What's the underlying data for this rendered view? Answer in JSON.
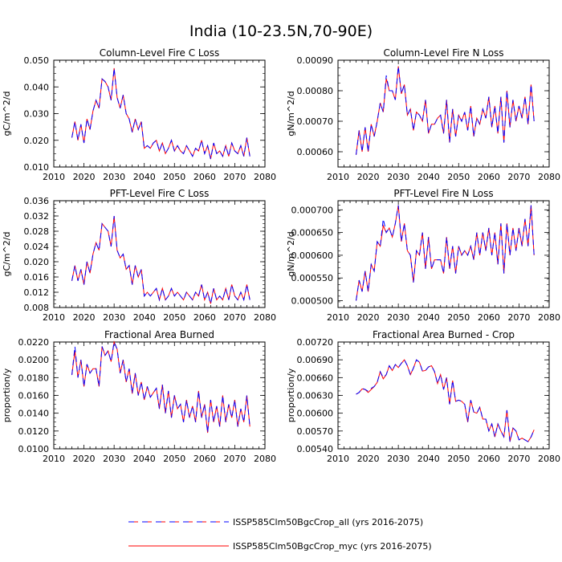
{
  "title": "India (10-23.5N,70-90E)",
  "legend": [
    {
      "label": "ISSP585Clm50BgcCrop_all (yrs 2016-2075)",
      "color": "#0000ff",
      "dash": "dashed"
    },
    {
      "label": "ISSP585Clm50BgcCrop_myc (yrs 2016-2075)",
      "color": "#ff0000",
      "dash": "solid"
    }
  ],
  "chart_data": [
    {
      "type": "line",
      "title": "Column-Level Fire C Loss",
      "ylabel": "gC/m^2/d",
      "xlim": [
        2010,
        2080
      ],
      "xticks": [
        "2010",
        "2020",
        "2030",
        "2040",
        "2050",
        "2060",
        "2070",
        "2080"
      ],
      "ylim": [
        0.01,
        0.05
      ],
      "yticks": [
        "0.010",
        "0.020",
        "0.030",
        "0.040",
        "0.050"
      ],
      "x_start": 2016,
      "series": [
        {
          "name": "ISSP585Clm50BgcCrop_all (yrs 2016-2075)",
          "values": [
            0.021,
            0.027,
            0.02,
            0.026,
            0.019,
            0.028,
            0.024,
            0.031,
            0.035,
            0.032,
            0.043,
            0.042,
            0.04,
            0.035,
            0.047,
            0.036,
            0.032,
            0.037,
            0.03,
            0.028,
            0.023,
            0.028,
            0.024,
            0.027,
            0.017,
            0.018,
            0.017,
            0.019,
            0.02,
            0.016,
            0.019,
            0.015,
            0.017,
            0.02,
            0.016,
            0.018,
            0.016,
            0.015,
            0.018,
            0.016,
            0.014,
            0.017,
            0.016,
            0.02,
            0.015,
            0.018,
            0.013,
            0.019,
            0.015,
            0.016,
            0.014,
            0.018,
            0.014,
            0.019,
            0.016,
            0.015,
            0.018,
            0.014,
            0.021,
            0.014
          ]
        },
        {
          "name": "ISSP585Clm50BgcCrop_myc (yrs 2016-2075)",
          "values": [
            0.021,
            0.027,
            0.02,
            0.026,
            0.019,
            0.028,
            0.024,
            0.031,
            0.035,
            0.032,
            0.043,
            0.042,
            0.04,
            0.035,
            0.047,
            0.036,
            0.032,
            0.037,
            0.03,
            0.028,
            0.023,
            0.028,
            0.024,
            0.027,
            0.017,
            0.018,
            0.017,
            0.019,
            0.02,
            0.016,
            0.019,
            0.015,
            0.017,
            0.02,
            0.016,
            0.018,
            0.016,
            0.015,
            0.018,
            0.016,
            0.014,
            0.017,
            0.016,
            0.02,
            0.015,
            0.018,
            0.013,
            0.019,
            0.015,
            0.016,
            0.014,
            0.018,
            0.014,
            0.019,
            0.016,
            0.015,
            0.018,
            0.014,
            0.021,
            0.014
          ]
        }
      ]
    },
    {
      "type": "line",
      "title": "Column-Level Fire N Loss",
      "ylabel": "gN/m^2/d",
      "xlim": [
        2010,
        2080
      ],
      "xticks": [
        "2010",
        "2020",
        "2030",
        "2040",
        "2050",
        "2060",
        "2070",
        "2080"
      ],
      "ylim": [
        0.00055,
        0.0009
      ],
      "yticks": [
        "0.00060",
        "0.00070",
        "0.00080",
        "0.00090"
      ],
      "x_start": 2016,
      "series": [
        {
          "name": "ISSP585Clm50BgcCrop_all (yrs 2016-2075)",
          "values": [
            0.00059,
            0.00067,
            0.0006,
            0.00068,
            0.0006,
            0.00069,
            0.00065,
            0.0007,
            0.00076,
            0.00073,
            0.00085,
            0.0008,
            0.0008,
            0.00077,
            0.00088,
            0.00079,
            0.00082,
            0.00072,
            0.00074,
            0.00067,
            0.00073,
            0.00072,
            0.0007,
            0.00077,
            0.00066,
            0.00069,
            0.00069,
            0.00071,
            0.00072,
            0.00066,
            0.00077,
            0.00063,
            0.00074,
            0.00065,
            0.00072,
            0.0007,
            0.00073,
            0.00067,
            0.00075,
            0.00065,
            0.00071,
            0.00069,
            0.00074,
            0.00071,
            0.00078,
            0.00068,
            0.00075,
            0.00066,
            0.00078,
            0.00063,
            0.0008,
            0.00068,
            0.00077,
            0.0007,
            0.00075,
            0.00071,
            0.00078,
            0.00069,
            0.00082,
            0.0007
          ]
        },
        {
          "name": "ISSP585Clm50BgcCrop_myc (yrs 2016-2075)",
          "values": [
            0.00059,
            0.00067,
            0.0006,
            0.00068,
            0.0006,
            0.00069,
            0.00065,
            0.0007,
            0.00076,
            0.00073,
            0.00084,
            0.0008,
            0.0008,
            0.00077,
            0.00088,
            0.00079,
            0.00082,
            0.00072,
            0.00074,
            0.00067,
            0.00073,
            0.00072,
            0.0007,
            0.00077,
            0.00066,
            0.00069,
            0.00069,
            0.00071,
            0.00072,
            0.00066,
            0.00077,
            0.00063,
            0.00074,
            0.00065,
            0.00072,
            0.0007,
            0.00073,
            0.00067,
            0.00075,
            0.00065,
            0.00071,
            0.00069,
            0.00074,
            0.00071,
            0.00078,
            0.00068,
            0.00075,
            0.00066,
            0.00078,
            0.00063,
            0.0008,
            0.00068,
            0.00077,
            0.0007,
            0.00075,
            0.00071,
            0.00078,
            0.00069,
            0.00082,
            0.0007
          ]
        }
      ]
    },
    {
      "type": "line",
      "title": "PFT-Level Fire C Loss",
      "ylabel": "gC/m^2/d",
      "xlim": [
        2010,
        2080
      ],
      "xticks": [
        "2010",
        "2020",
        "2030",
        "2040",
        "2050",
        "2060",
        "2070",
        "2080"
      ],
      "ylim": [
        0.008,
        0.036
      ],
      "yticks": [
        "0.008",
        "0.012",
        "0.016",
        "0.020",
        "0.024",
        "0.028",
        "0.032",
        "0.036"
      ],
      "x_start": 2016,
      "series": [
        {
          "name": "ISSP585Clm50BgcCrop_all (yrs 2016-2075)",
          "values": [
            0.015,
            0.019,
            0.015,
            0.018,
            0.014,
            0.02,
            0.017,
            0.022,
            0.025,
            0.023,
            0.03,
            0.029,
            0.028,
            0.024,
            0.032,
            0.023,
            0.021,
            0.022,
            0.018,
            0.019,
            0.014,
            0.019,
            0.016,
            0.018,
            0.011,
            0.012,
            0.011,
            0.012,
            0.013,
            0.01,
            0.013,
            0.01,
            0.011,
            0.013,
            0.011,
            0.012,
            0.011,
            0.01,
            0.012,
            0.011,
            0.01,
            0.012,
            0.011,
            0.014,
            0.01,
            0.012,
            0.009,
            0.013,
            0.01,
            0.011,
            0.01,
            0.013,
            0.01,
            0.014,
            0.011,
            0.01,
            0.012,
            0.01,
            0.014,
            0.01
          ]
        },
        {
          "name": "ISSP585Clm50BgcCrop_myc (yrs 2016-2075)",
          "values": [
            0.015,
            0.019,
            0.015,
            0.018,
            0.014,
            0.02,
            0.017,
            0.022,
            0.025,
            0.023,
            0.03,
            0.029,
            0.028,
            0.024,
            0.032,
            0.023,
            0.021,
            0.022,
            0.018,
            0.019,
            0.014,
            0.019,
            0.016,
            0.018,
            0.011,
            0.012,
            0.011,
            0.012,
            0.013,
            0.01,
            0.013,
            0.01,
            0.011,
            0.013,
            0.011,
            0.012,
            0.011,
            0.01,
            0.012,
            0.011,
            0.01,
            0.012,
            0.011,
            0.014,
            0.01,
            0.012,
            0.009,
            0.013,
            0.01,
            0.011,
            0.01,
            0.013,
            0.01,
            0.014,
            0.011,
            0.01,
            0.012,
            0.01,
            0.014,
            0.01
          ]
        }
      ]
    },
    {
      "type": "line",
      "title": "PFT-Level Fire N Loss",
      "ylabel": "gN/m^2/d",
      "xlim": [
        2010,
        2080
      ],
      "xticks": [
        "2010",
        "2020",
        "2030",
        "2040",
        "2050",
        "2060",
        "2070",
        "2080"
      ],
      "ylim": [
        0.000485,
        0.00072
      ],
      "yticks": [
        "0.000500",
        "0.000550",
        "0.000600",
        "0.000650",
        "0.000700"
      ],
      "x_start": 2016,
      "series": [
        {
          "name": "ISSP585Clm50BgcCrop_all (yrs 2016-2075)",
          "values": [
            0.0005,
            0.000545,
            0.00052,
            0.000565,
            0.00052,
            0.00058,
            0.000565,
            0.00063,
            0.00062,
            0.00068,
            0.00065,
            0.00066,
            0.00064,
            0.00067,
            0.00071,
            0.00063,
            0.00067,
            0.00061,
            0.0006,
            0.00054,
            0.00061,
            0.0006,
            0.00065,
            0.00057,
            0.00064,
            0.00057,
            0.00059,
            0.00059,
            0.00059,
            0.00056,
            0.00064,
            0.00057,
            0.00062,
            0.00056,
            0.00062,
            0.0006,
            0.00061,
            0.0006,
            0.00062,
            0.00059,
            0.00065,
            0.0006,
            0.00065,
            0.00061,
            0.00066,
            0.0006,
            0.00065,
            0.00058,
            0.00067,
            0.00056,
            0.00067,
            0.0006,
            0.00066,
            0.00061,
            0.00066,
            0.00062,
            0.00068,
            0.00062,
            0.00071,
            0.0006
          ]
        },
        {
          "name": "ISSP585Clm50BgcCrop_myc (yrs 2016-2075)",
          "values": [
            0.0005,
            0.000545,
            0.00052,
            0.000565,
            0.00052,
            0.00058,
            0.000565,
            0.00063,
            0.00062,
            0.000665,
            0.00065,
            0.00066,
            0.00064,
            0.00067,
            0.00071,
            0.00063,
            0.00067,
            0.00061,
            0.0006,
            0.00054,
            0.00061,
            0.0006,
            0.00065,
            0.00057,
            0.00064,
            0.00057,
            0.00059,
            0.00059,
            0.00059,
            0.00056,
            0.00064,
            0.00057,
            0.00062,
            0.00056,
            0.00062,
            0.0006,
            0.00061,
            0.0006,
            0.00062,
            0.00059,
            0.00065,
            0.0006,
            0.00065,
            0.00061,
            0.00066,
            0.0006,
            0.00065,
            0.00058,
            0.00067,
            0.00056,
            0.00067,
            0.0006,
            0.00066,
            0.00061,
            0.00066,
            0.00062,
            0.00068,
            0.00062,
            0.00071,
            0.0006
          ]
        }
      ]
    },
    {
      "type": "line",
      "title": "Fractional Area Burned",
      "ylabel": "proportion/y",
      "xlim": [
        2010,
        2080
      ],
      "xticks": [
        "2010",
        "2020",
        "2030",
        "2040",
        "2050",
        "2060",
        "2070",
        "2080"
      ],
      "ylim": [
        0.01,
        0.022
      ],
      "yticks": [
        "0.0100",
        "0.0120",
        "0.0140",
        "0.0160",
        "0.0180",
        "0.0200",
        "0.0220"
      ],
      "x_start": 2016,
      "series": [
        {
          "name": "ISSP585Clm50BgcCrop_all (yrs 2016-2075)",
          "values": [
            0.0183,
            0.0215,
            0.018,
            0.02,
            0.017,
            0.0195,
            0.0185,
            0.019,
            0.019,
            0.017,
            0.0215,
            0.0205,
            0.021,
            0.0198,
            0.022,
            0.0212,
            0.0185,
            0.02,
            0.0175,
            0.019,
            0.0162,
            0.0185,
            0.016,
            0.0175,
            0.0155,
            0.017,
            0.0158,
            0.0163,
            0.0168,
            0.0145,
            0.0172,
            0.014,
            0.0165,
            0.0135,
            0.016,
            0.0145,
            0.015,
            0.013,
            0.0155,
            0.0135,
            0.0148,
            0.013,
            0.0165,
            0.0135,
            0.015,
            0.0118,
            0.0155,
            0.013,
            0.0148,
            0.0125,
            0.016,
            0.013,
            0.015,
            0.0135,
            0.0155,
            0.0125,
            0.0145,
            0.013,
            0.016,
            0.0125
          ]
        },
        {
          "name": "ISSP585Clm50BgcCrop_myc (yrs 2016-2075)",
          "values": [
            0.0183,
            0.021,
            0.018,
            0.02,
            0.017,
            0.0195,
            0.0185,
            0.019,
            0.019,
            0.017,
            0.0215,
            0.0205,
            0.021,
            0.0198,
            0.022,
            0.0212,
            0.0185,
            0.02,
            0.0175,
            0.019,
            0.0162,
            0.0185,
            0.016,
            0.0175,
            0.0155,
            0.017,
            0.0158,
            0.0163,
            0.0168,
            0.0145,
            0.0172,
            0.014,
            0.0165,
            0.0135,
            0.016,
            0.0145,
            0.015,
            0.013,
            0.0155,
            0.0135,
            0.0148,
            0.013,
            0.0165,
            0.0135,
            0.015,
            0.0118,
            0.0155,
            0.013,
            0.0148,
            0.0125,
            0.016,
            0.013,
            0.015,
            0.0135,
            0.0155,
            0.0125,
            0.0145,
            0.013,
            0.016,
            0.0125
          ]
        }
      ]
    },
    {
      "type": "line",
      "title": "Fractional Area Burned - Crop",
      "ylabel": "proportion/y",
      "xlim": [
        2010,
        2080
      ],
      "xticks": [
        "2010",
        "2020",
        "2030",
        "2040",
        "2050",
        "2060",
        "2070",
        "2080"
      ],
      "ylim": [
        0.0054,
        0.0072
      ],
      "yticks": [
        "0.00540",
        "0.00570",
        "0.00600",
        "0.00630",
        "0.00660",
        "0.00690",
        "0.00720"
      ],
      "x_start": 2016,
      "series": [
        {
          "name": "ISSP585Clm50BgcCrop_all (yrs 2016-2075)",
          "values": [
            0.00632,
            0.00635,
            0.00642,
            0.0064,
            0.00637,
            0.00642,
            0.00645,
            0.00652,
            0.0067,
            0.0066,
            0.00665,
            0.0068,
            0.00672,
            0.00682,
            0.00677,
            0.00684,
            0.0069,
            0.0068,
            0.00665,
            0.00676,
            0.0069,
            0.00686,
            0.00671,
            0.00672,
            0.00678,
            0.0068,
            0.0067,
            0.0065,
            0.00665,
            0.0064,
            0.0066,
            0.00615,
            0.00655,
            0.0062,
            0.00622,
            0.0062,
            0.00615,
            0.00585,
            0.00622,
            0.00602,
            0.006,
            0.0061,
            0.0059,
            0.0059,
            0.0057,
            0.00582,
            0.0056,
            0.00582,
            0.0057,
            0.0056,
            0.00605,
            0.00552,
            0.00575,
            0.0057,
            0.00555,
            0.00558,
            0.00555,
            0.00552,
            0.0056,
            0.00572
          ]
        },
        {
          "name": "ISSP585Clm50BgcCrop_myc (yrs 2016-2075)",
          "values": [
            0.00632,
            0.00635,
            0.00641,
            0.0064,
            0.00635,
            0.0064,
            0.00645,
            0.00652,
            0.0067,
            0.00658,
            0.00665,
            0.0068,
            0.00672,
            0.00682,
            0.00677,
            0.00684,
            0.0069,
            0.0068,
            0.00665,
            0.00676,
            0.0069,
            0.00686,
            0.00671,
            0.00672,
            0.00678,
            0.0068,
            0.0067,
            0.0065,
            0.00665,
            0.0064,
            0.0066,
            0.00615,
            0.00655,
            0.0062,
            0.00622,
            0.0062,
            0.00615,
            0.00585,
            0.00622,
            0.00602,
            0.006,
            0.0061,
            0.0059,
            0.0059,
            0.0057,
            0.00582,
            0.0056,
            0.00582,
            0.0057,
            0.0056,
            0.00605,
            0.00552,
            0.00575,
            0.0057,
            0.00555,
            0.00558,
            0.00555,
            0.00552,
            0.0056,
            0.00572
          ]
        }
      ]
    }
  ]
}
